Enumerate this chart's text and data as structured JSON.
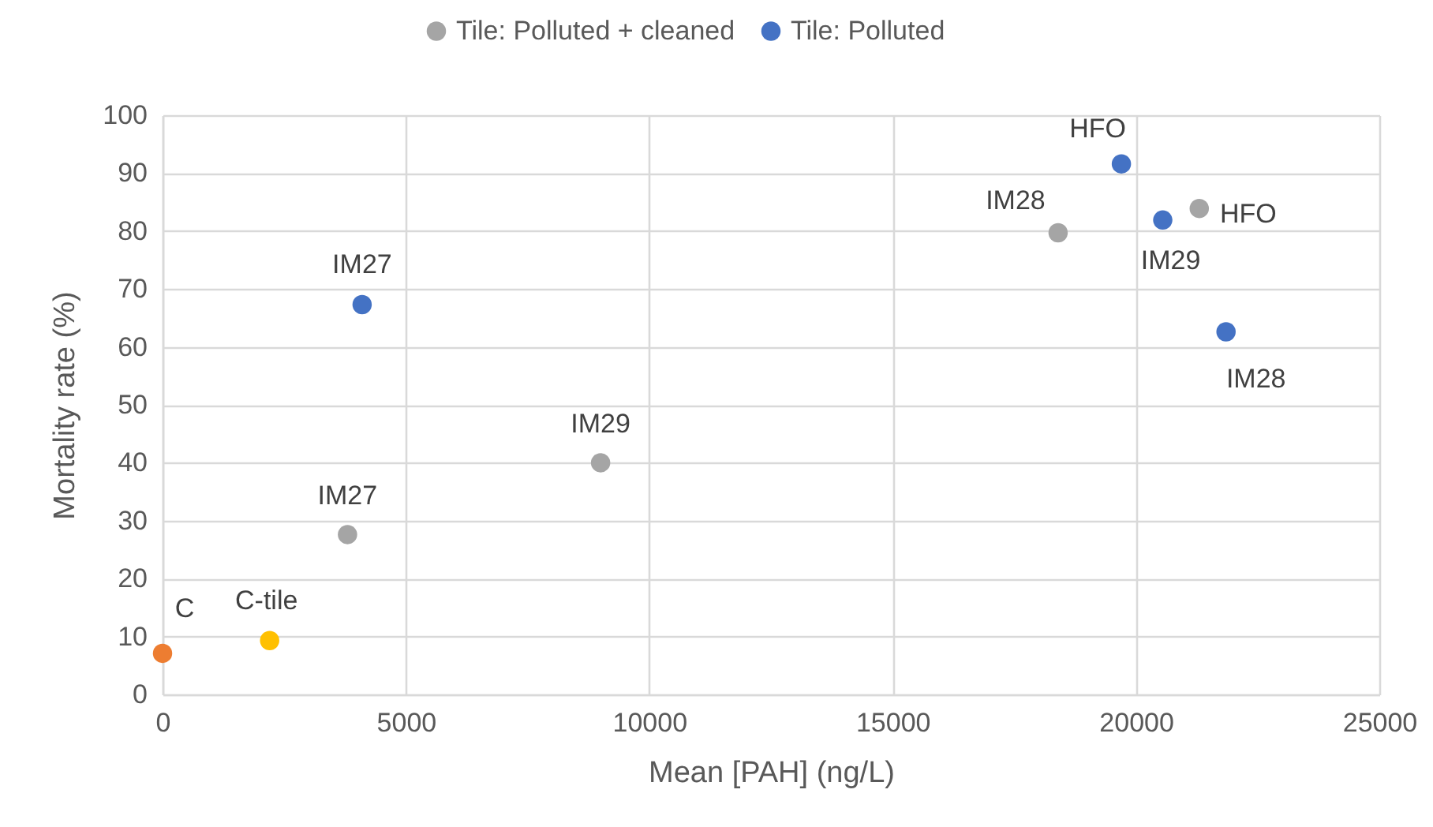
{
  "chart_data": {
    "type": "scatter",
    "xlabel": "Mean [PAH] (ng/L)",
    "ylabel": "Mortality rate (%)",
    "xlim": [
      0,
      25000
    ],
    "xticks": [
      0,
      5000,
      10000,
      15000,
      20000,
      25000
    ],
    "ylim": [
      0,
      100
    ],
    "yticks": [
      0,
      10,
      20,
      30,
      40,
      50,
      60,
      70,
      80,
      90,
      100
    ],
    "grid": true,
    "legend": "top",
    "marker": "circle",
    "series": [
      {
        "name": "Tile: Polluted + cleaned",
        "color": "#a5a5a5",
        "x": [
          3800,
          9000,
          18400,
          21300
        ],
        "values": [
          27.6,
          40,
          79.7,
          83.9
        ]
      },
      {
        "name": "Tile: Polluted",
        "color": "#4472c4",
        "x": [
          4100,
          19700,
          20550,
          21850
        ],
        "values": [
          67.3,
          91.6,
          81.9,
          62.6
        ]
      },
      {
        "color": "#ed7d31",
        "x": [
          0
        ],
        "values": [
          7.1
        ]
      },
      {
        "color": "#ffc000",
        "x": [
          2200
        ],
        "values": [
          9.3
        ]
      }
    ],
    "annotations": [
      {
        "text": "C",
        "x": 0,
        "y": 7.1
      },
      {
        "text": "C-tile",
        "x": 2200,
        "y": 9.3
      },
      {
        "text": "IM27",
        "x": 3800,
        "y": 27.6
      },
      {
        "text": "IM29",
        "x": 9000,
        "y": 40
      },
      {
        "text": "IM27",
        "x": 4100,
        "y": 67.3
      },
      {
        "text": "IM28",
        "x": 18400,
        "y": 79.7
      },
      {
        "text": "HFO",
        "x": 19700,
        "y": 91.6
      },
      {
        "text": "IM29",
        "x": 20550,
        "y": 81.9
      },
      {
        "text": "HFO",
        "x": 21300,
        "y": 83.9
      },
      {
        "text": "IM28",
        "x": 21850,
        "y": 62.6
      }
    ]
  }
}
